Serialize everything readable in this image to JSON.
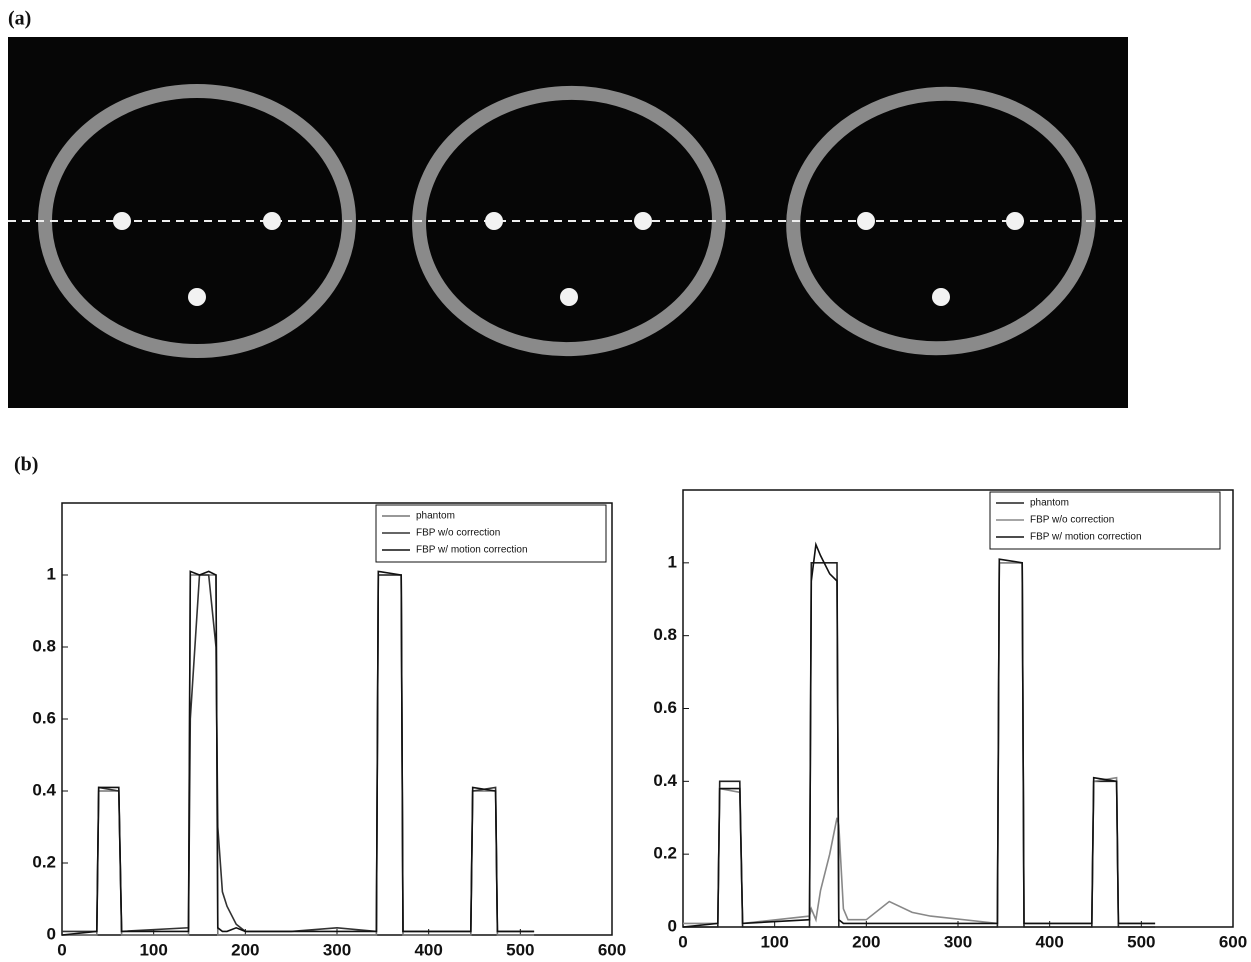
{
  "panel_labels": [
    "(a)",
    "(b)"
  ],
  "chart_data": [
    {
      "type": "line",
      "x": [
        0,
        38,
        40,
        62,
        65,
        138,
        140,
        150,
        160,
        168,
        170,
        175,
        180,
        190,
        200,
        250,
        300,
        343,
        345,
        370,
        372,
        446,
        448,
        473,
        475,
        515
      ],
      "series": [
        {
          "name": "phantom",
          "color": "#777777",
          "values": [
            0,
            0,
            0.4,
            0.4,
            0,
            0,
            1,
            1,
            1,
            1,
            0,
            0,
            0,
            0,
            0,
            0,
            0,
            0,
            1,
            1,
            0,
            0,
            0.4,
            0.4,
            0,
            0
          ]
        },
        {
          "name": "FBP w/o correction",
          "color": "#333333",
          "values": [
            0.01,
            0.01,
            0.41,
            0.4,
            0.01,
            0.02,
            0.6,
            1.0,
            1.0,
            0.8,
            0.3,
            0.12,
            0.08,
            0.03,
            0.01,
            0.01,
            0.02,
            0.01,
            1.0,
            1.0,
            0.01,
            0.01,
            0.4,
            0.41,
            0.01,
            0.01
          ]
        },
        {
          "name": "FBP w/ motion correction",
          "color": "#111111",
          "values": [
            0,
            0.01,
            0.41,
            0.41,
            0.01,
            0.01,
            1.01,
            1.0,
            1.01,
            1.0,
            0.02,
            0.01,
            0.01,
            0.02,
            0.01,
            0.01,
            0.01,
            0.01,
            1.01,
            1.0,
            0.01,
            0.01,
            0.41,
            0.4,
            0.01,
            0.01
          ]
        }
      ],
      "xlim": [
        0,
        600
      ],
      "xticks": [
        0,
        100,
        200,
        300,
        400,
        500,
        600
      ],
      "ylim": [
        0,
        1.2
      ],
      "yticks": [
        0,
        0.2,
        0.4,
        0.6,
        0.8,
        1
      ]
    },
    {
      "type": "line",
      "x": [
        0,
        38,
        40,
        62,
        65,
        138,
        140,
        145,
        150,
        160,
        168,
        170,
        175,
        180,
        200,
        225,
        250,
        270,
        343,
        345,
        370,
        372,
        446,
        448,
        473,
        475,
        515
      ],
      "series": [
        {
          "name": "phantom",
          "color": "#222222",
          "values": [
            0,
            0,
            0.4,
            0.4,
            0,
            0,
            1,
            1,
            1,
            1,
            1,
            0,
            0,
            0,
            0,
            0,
            0,
            0,
            0,
            1,
            1,
            0,
            0,
            0.4,
            0.4,
            0,
            0
          ]
        },
        {
          "name": "FBP w/o correction",
          "color": "#888888",
          "values": [
            0.01,
            0.01,
            0.38,
            0.37,
            0.01,
            0.03,
            0.05,
            0.02,
            0.1,
            0.2,
            0.3,
            0.28,
            0.05,
            0.02,
            0.02,
            0.07,
            0.04,
            0.03,
            0.01,
            1.0,
            1.0,
            0.01,
            0.01,
            0.4,
            0.41,
            0.01,
            0.01
          ]
        },
        {
          "name": "FBP w/ motion correction",
          "color": "#111111",
          "values": [
            0,
            0.01,
            0.38,
            0.38,
            0.01,
            0.02,
            0.95,
            1.05,
            1.02,
            0.97,
            0.95,
            0.02,
            0.01,
            0.01,
            0.01,
            0.01,
            0.01,
            0.01,
            0.01,
            1.01,
            1.0,
            0.01,
            0.01,
            0.41,
            0.4,
            0.01,
            0.01
          ]
        }
      ],
      "xlim": [
        0,
        600
      ],
      "xticks": [
        0,
        100,
        200,
        300,
        400,
        500,
        600
      ],
      "ylim": [
        0,
        1.2
      ],
      "yticks": [
        0,
        0.2,
        0.4,
        0.6,
        0.8,
        1
      ]
    }
  ]
}
